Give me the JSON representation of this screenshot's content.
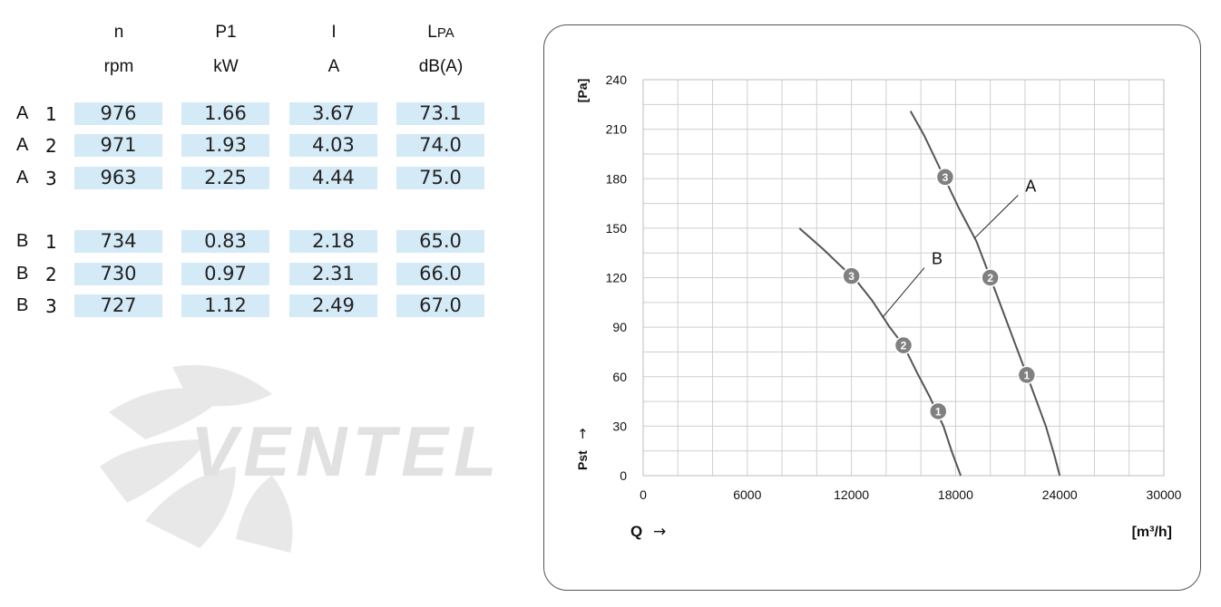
{
  "table": {
    "headers": [
      {
        "symbol": "n",
        "unit": "rpm"
      },
      {
        "symbol": "P1",
        "unit": "kW"
      },
      {
        "symbol": "I",
        "unit": "A"
      },
      {
        "symbol": "L",
        "symbol_sub": "PA",
        "unit": "dB(A)"
      }
    ],
    "rows": [
      {
        "curve": "A",
        "step": "1",
        "values": [
          "976",
          "1.66",
          "3.67",
          "73.1"
        ]
      },
      {
        "curve": "A",
        "step": "2",
        "values": [
          "971",
          "1.93",
          "4.03",
          "74.0"
        ]
      },
      {
        "curve": "A",
        "step": "3",
        "values": [
          "963",
          "2.25",
          "4.44",
          "75.0"
        ]
      },
      {
        "curve": "B",
        "step": "1",
        "values": [
          "734",
          "0.83",
          "2.18",
          "65.0"
        ]
      },
      {
        "curve": "B",
        "step": "2",
        "values": [
          "730",
          "0.97",
          "2.31",
          "66.0"
        ]
      },
      {
        "curve": "B",
        "step": "3",
        "values": [
          "727",
          "1.12",
          "2.49",
          "67.0"
        ]
      }
    ]
  },
  "watermark": {
    "text": "VENTEL"
  },
  "chart_data": {
    "type": "line",
    "x_axis": {
      "label": "Q",
      "arrow": "→",
      "unit": "[m³/h]",
      "range": [
        0,
        30000
      ],
      "ticks": [
        "0",
        "6000",
        "12000",
        "18000",
        "24000",
        "30000"
      ],
      "minor_step": 2000
    },
    "y_axis": {
      "label": "Pst",
      "arrow": "→",
      "unit": "[Pa]",
      "range": [
        0,
        240
      ],
      "ticks": [
        "0",
        "30",
        "60",
        "90",
        "120",
        "150",
        "180",
        "210",
        "240"
      ],
      "minor_step": 15
    },
    "grid": true,
    "line_color": "#555555",
    "marker_color": "#808080",
    "series": [
      {
        "name": "A",
        "points": [
          [
            15400,
            221
          ],
          [
            16200,
            206
          ],
          [
            17200,
            184
          ],
          [
            18200,
            162
          ],
          [
            19200,
            142
          ],
          [
            20000,
            120
          ],
          [
            21000,
            92
          ],
          [
            22000,
            64
          ],
          [
            22500,
            50
          ],
          [
            23200,
            30
          ],
          [
            23700,
            12
          ],
          [
            24000,
            0
          ]
        ],
        "markers": [
          {
            "label": "3",
            "x": 17400,
            "y": 181
          },
          {
            "label": "2",
            "x": 20000,
            "y": 120
          },
          {
            "label": "1",
            "x": 22100,
            "y": 61
          }
        ],
        "annotation": {
          "text": "A",
          "pointer_from": [
            21600,
            170
          ],
          "pointer_to": [
            19100,
            144
          ]
        }
      },
      {
        "name": "B",
        "points": [
          [
            9000,
            150
          ],
          [
            10400,
            137
          ],
          [
            11400,
            127
          ],
          [
            12300,
            118
          ],
          [
            13200,
            106
          ],
          [
            14200,
            90
          ],
          [
            15000,
            79
          ],
          [
            15800,
            62
          ],
          [
            16500,
            48
          ],
          [
            17300,
            30
          ],
          [
            17800,
            14
          ],
          [
            18300,
            0
          ]
        ],
        "markers": [
          {
            "label": "3",
            "x": 12000,
            "y": 121
          },
          {
            "label": "2",
            "x": 15000,
            "y": 79
          },
          {
            "label": "1",
            "x": 17000,
            "y": 39
          }
        ],
        "annotation": {
          "text": "B",
          "pointer_from": [
            16200,
            126
          ],
          "pointer_to": [
            13800,
            96
          ]
        }
      }
    ]
  }
}
